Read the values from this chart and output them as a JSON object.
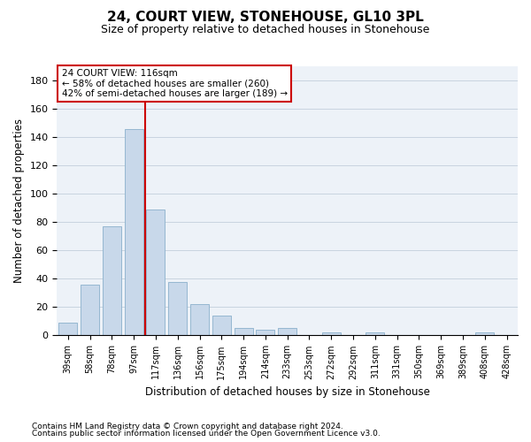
{
  "title": "24, COURT VIEW, STONEHOUSE, GL10 3PL",
  "subtitle": "Size of property relative to detached houses in Stonehouse",
  "xlabel": "Distribution of detached houses by size in Stonehouse",
  "ylabel": "Number of detached properties",
  "bar_color": "#c8d8ea",
  "bar_edgecolor": "#8ab0cc",
  "categories": [
    "39sqm",
    "58sqm",
    "78sqm",
    "97sqm",
    "117sqm",
    "136sqm",
    "156sqm",
    "175sqm",
    "194sqm",
    "214sqm",
    "233sqm",
    "253sqm",
    "272sqm",
    "292sqm",
    "311sqm",
    "331sqm",
    "350sqm",
    "369sqm",
    "389sqm",
    "408sqm",
    "428sqm"
  ],
  "values": [
    9,
    36,
    77,
    146,
    89,
    38,
    22,
    14,
    5,
    4,
    5,
    0,
    2,
    0,
    2,
    0,
    0,
    0,
    0,
    2,
    0
  ],
  "ylim": [
    0,
    190
  ],
  "yticks": [
    0,
    20,
    40,
    60,
    80,
    100,
    120,
    140,
    160,
    180
  ],
  "vline_pos": 3.5,
  "vline_color": "#cc0000",
  "property_line_label": "24 COURT VIEW: 116sqm",
  "annotation_line1": "← 58% of detached houses are smaller (260)",
  "annotation_line2": "42% of semi-detached houses are larger (189) →",
  "footnote1": "Contains HM Land Registry data © Crown copyright and database right 2024.",
  "footnote2": "Contains public sector information licensed under the Open Government Licence v3.0.",
  "plot_bgcolor": "#edf2f8",
  "grid_color": "#c8d4e0"
}
